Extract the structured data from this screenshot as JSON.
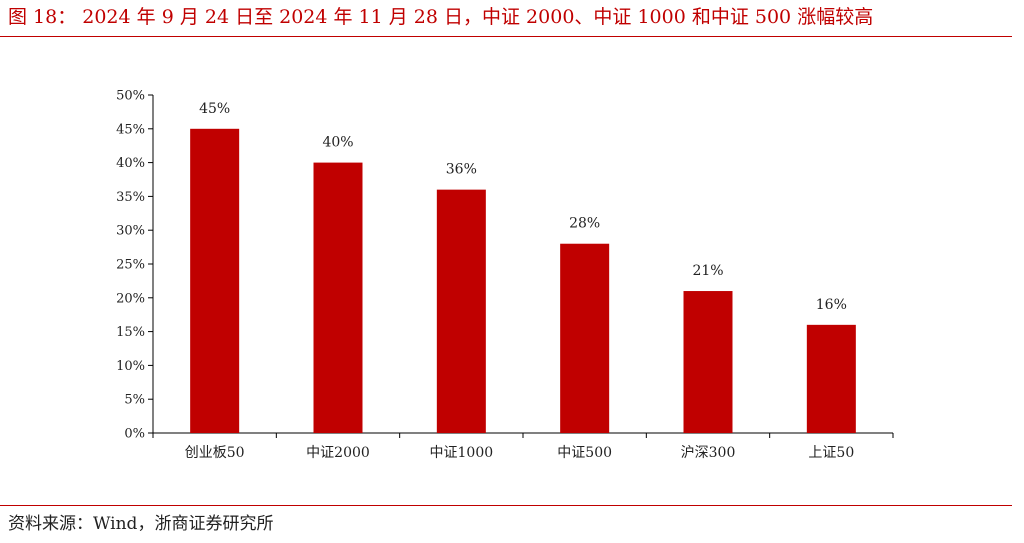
{
  "figure": {
    "title": "图 18：  2024 年 9 月 24 日至 2024 年 11 月 28 日，中证 2000、中证 1000 和中证 500 涨幅较高",
    "source": "资料来源：Wind，浙商证券研究所"
  },
  "colors": {
    "accent": "#c00000",
    "bar": "#c00000",
    "axis": "#000000",
    "text": "#222222"
  },
  "chart_data": {
    "type": "bar",
    "title": "",
    "xlabel": "",
    "ylabel": "",
    "categories": [
      "创业板50",
      "中证2000",
      "中证1000",
      "中证500",
      "沪深300",
      "上证50"
    ],
    "values": [
      45,
      40,
      36,
      28,
      21,
      16
    ],
    "data_labels": [
      "45%",
      "40%",
      "36%",
      "28%",
      "21%",
      "16%"
    ],
    "ylim": [
      0,
      50
    ],
    "yticks": [
      0,
      5,
      10,
      15,
      20,
      25,
      30,
      35,
      40,
      45,
      50
    ],
    "ytick_labels": [
      "0%",
      "5%",
      "10%",
      "15%",
      "20%",
      "25%",
      "30%",
      "35%",
      "40%",
      "45%",
      "50%"
    ],
    "grid": false,
    "legend": "none"
  }
}
